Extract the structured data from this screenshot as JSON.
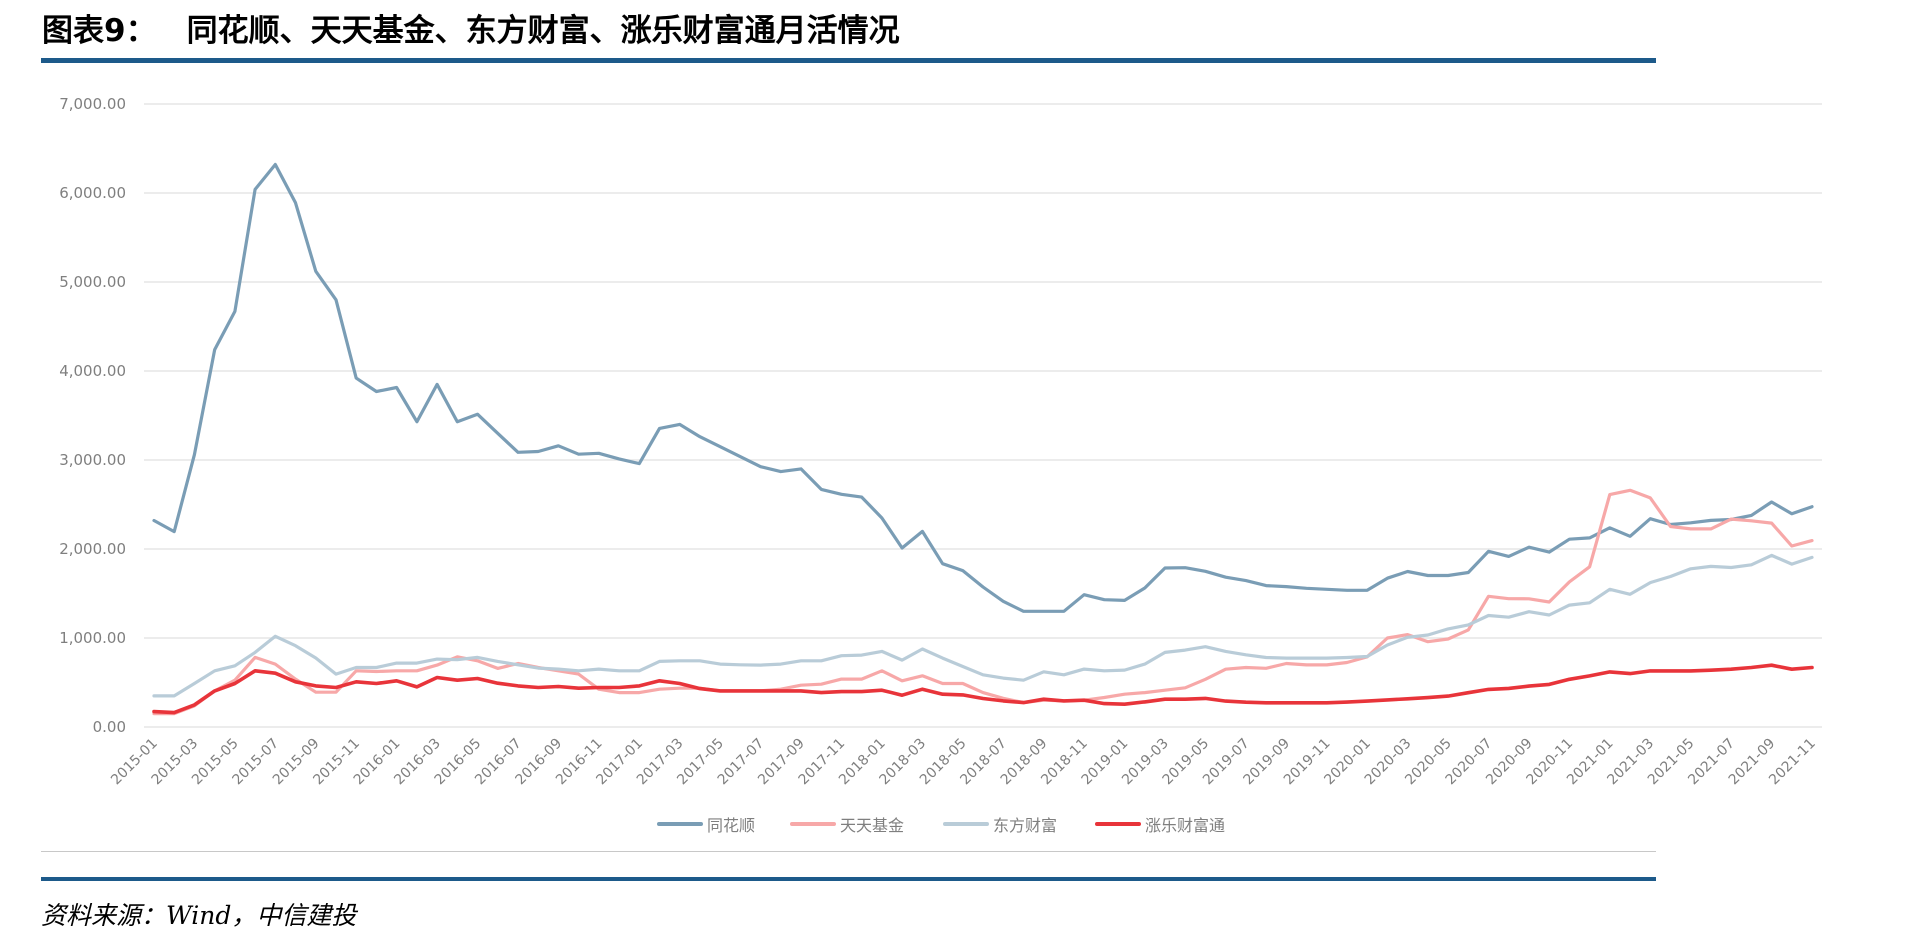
{
  "figure": {
    "label": "图表9：",
    "title": "同花顺、天天基金、东方财富、涨乐财富通月活情况",
    "source": "资料来源：Wind，中信建投"
  },
  "colors": {
    "rule": "#1d5a8a",
    "grid": "#e6e6e6",
    "axis_text": "#7f7f7f"
  },
  "legend": [
    {
      "name": "同花顺",
      "color": "#7a9db5"
    },
    {
      "name": "天天基金",
      "color": "#f7a8a8"
    },
    {
      "name": "东方财富",
      "color": "#b9ccd8"
    },
    {
      "name": "涨乐财富通",
      "color": "#e8343a"
    }
  ],
  "chart_data": {
    "type": "line",
    "title": "同花顺、天天基金、东方财富、涨乐财富通月活情况",
    "xlabel": "",
    "ylabel": "",
    "ylim": [
      0,
      7000
    ],
    "yticks": [
      "0.00",
      "1,000.00",
      "2,000.00",
      "3,000.00",
      "4,000.00",
      "5,000.00",
      "6,000.00",
      "7,000.00"
    ],
    "grid": true,
    "legend_position": "bottom",
    "x": [
      "2015-01",
      "2015-02",
      "2015-03",
      "2015-04",
      "2015-05",
      "2015-06",
      "2015-07",
      "2015-08",
      "2015-09",
      "2015-10",
      "2015-11",
      "2015-12",
      "2016-01",
      "2016-02",
      "2016-03",
      "2016-04",
      "2016-05",
      "2016-06",
      "2016-07",
      "2016-08",
      "2016-09",
      "2016-10",
      "2016-11",
      "2016-12",
      "2017-01",
      "2017-02",
      "2017-03",
      "2017-04",
      "2017-05",
      "2017-06",
      "2017-07",
      "2017-08",
      "2017-09",
      "2017-10",
      "2017-11",
      "2017-12",
      "2018-01",
      "2018-02",
      "2018-03",
      "2018-04",
      "2018-05",
      "2018-06",
      "2018-07",
      "2018-08",
      "2018-09",
      "2018-10",
      "2018-11",
      "2018-12",
      "2019-01",
      "2019-02",
      "2019-03",
      "2019-04",
      "2019-05",
      "2019-06",
      "2019-07",
      "2019-08",
      "2019-09",
      "2019-10",
      "2019-11",
      "2019-12",
      "2020-01",
      "2020-02",
      "2020-03",
      "2020-04",
      "2020-05",
      "2020-06",
      "2020-07",
      "2020-08",
      "2020-09",
      "2020-10",
      "2020-11",
      "2020-12",
      "2021-01",
      "2021-02",
      "2021-03",
      "2021-04",
      "2021-05",
      "2021-06",
      "2021-07",
      "2021-08",
      "2021-09",
      "2021-10",
      "2021-11"
    ],
    "xtick_labels": [
      "2015-01",
      "2015-03",
      "2015-05",
      "2015-07",
      "2015-09",
      "2015-11",
      "2016-01",
      "2016-03",
      "2016-05",
      "2016-07",
      "2016-09",
      "2016-11",
      "2017-01",
      "2017-03",
      "2017-05",
      "2017-07",
      "2017-09",
      "2017-11",
      "2018-01",
      "2018-03",
      "2018-05",
      "2018-07",
      "2018-09",
      "2018-11",
      "2019-01",
      "2019-03",
      "2019-05",
      "2019-07",
      "2019-09",
      "2019-11",
      "2020-01",
      "2020-03",
      "2020-05",
      "2020-07",
      "2020-09",
      "2020-11",
      "2021-01",
      "2021-03",
      "2021-05",
      "2021-07",
      "2021-09",
      "2021-11"
    ],
    "series": [
      {
        "name": "同花顺",
        "color": "#7a9db5",
        "width": 3.2,
        "values": [
          2320,
          2195,
          3060,
          4240,
          4670,
          6040,
          6320,
          5890,
          5120,
          4800,
          3920,
          3770,
          3815,
          3430,
          3850,
          3430,
          3515,
          3300,
          3087,
          3095,
          3160,
          3065,
          3075,
          3012,
          2960,
          3355,
          3400,
          3262,
          3150,
          3037,
          2925,
          2870,
          2900,
          2670,
          2615,
          2583,
          2348,
          2011,
          2198,
          1835,
          1757,
          1573,
          1412,
          1300,
          1300,
          1300,
          1487,
          1430,
          1423,
          1562,
          1787,
          1790,
          1750,
          1683,
          1645,
          1589,
          1577,
          1558,
          1547,
          1536,
          1536,
          1672,
          1747,
          1702,
          1702,
          1736,
          1974,
          1917,
          2020,
          1965,
          2110,
          2125,
          2238,
          2143,
          2340,
          2275,
          2294,
          2321,
          2332,
          2377,
          2528,
          2396,
          2475
        ]
      },
      {
        "name": "天天基金",
        "color": "#f7a8a8",
        "width": 3.2,
        "values": [
          150,
          150,
          237,
          406,
          526,
          782,
          707,
          538,
          391,
          391,
          632,
          624,
          632,
          632,
          695,
          789,
          744,
          658,
          714,
          669,
          632,
          594,
          425,
          387,
          387,
          425,
          436,
          436,
          406,
          406,
          406,
          425,
          470,
          481,
          538,
          538,
          632,
          519,
          575,
          489,
          489,
          387,
          323,
          274,
          301,
          293,
          301,
          331,
          368,
          387,
          414,
          441,
          536,
          649,
          668,
          660,
          713,
          698,
          698,
          725,
          789,
          1000,
          1038,
          958,
          989,
          1091,
          1468,
          1442,
          1440,
          1404,
          1630,
          1800,
          2611,
          2660,
          2574,
          2253,
          2226,
          2226,
          2336,
          2317,
          2291,
          2034,
          2094
        ]
      },
      {
        "name": "东方财富",
        "color": "#b9ccd8",
        "width": 3.2,
        "values": [
          350,
          350,
          489,
          632,
          688,
          838,
          1019,
          914,
          775,
          594,
          669,
          669,
          718,
          718,
          763,
          756,
          782,
          737,
          699,
          662,
          650,
          632,
          650,
          632,
          632,
          737,
          744,
          744,
          707,
          699,
          695,
          707,
          744,
          744,
          801,
          808,
          850,
          752,
          876,
          774,
          680,
          586,
          549,
          526,
          620,
          586,
          650,
          631,
          639,
          707,
          838,
          864,
          902,
          849,
          811,
          781,
          774,
          774,
          774,
          781,
          792,
          921,
          1008,
          1034,
          1102,
          1147,
          1253,
          1234,
          1296,
          1258,
          1370,
          1396,
          1547,
          1491,
          1623,
          1691,
          1777,
          1804,
          1792,
          1823,
          1928,
          1830,
          1906
        ]
      },
      {
        "name": "涨乐财富通",
        "color": "#e8343a",
        "width": 3.6,
        "values": [
          173,
          162,
          248,
          406,
          489,
          632,
          605,
          508,
          462,
          444,
          508,
          489,
          519,
          451,
          556,
          526,
          545,
          492,
          462,
          444,
          455,
          436,
          444,
          444,
          462,
          519,
          489,
          432,
          406,
          406,
          406,
          406,
          406,
          387,
          398,
          398,
          414,
          357,
          425,
          368,
          361,
          320,
          293,
          274,
          312,
          293,
          301,
          263,
          256,
          282,
          312,
          312,
          321,
          291,
          279,
          272,
          272,
          272,
          272,
          280,
          291,
          305,
          317,
          330,
          347,
          385,
          423,
          434,
          460,
          479,
          536,
          574,
          619,
          600,
          630,
          630,
          630,
          638,
          649,
          668,
          694,
          649,
          668
        ]
      }
    ]
  }
}
